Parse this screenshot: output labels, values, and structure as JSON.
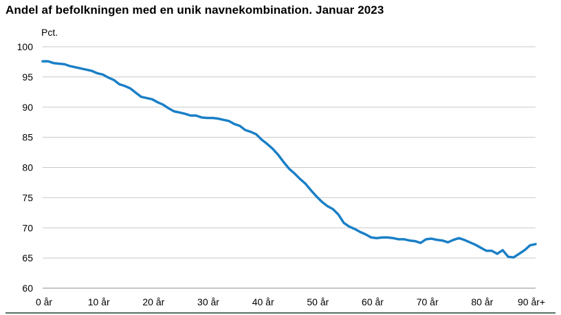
{
  "chart_data": {
    "type": "line",
    "title": "Andel af befolkningen med en unik navnekombination. Januar 2023",
    "ylabel": "Pct.",
    "xlabel": "",
    "ylim": [
      60,
      100
    ],
    "xlim": [
      0,
      90
    ],
    "y_ticks": [
      60,
      65,
      70,
      75,
      80,
      85,
      90,
      95,
      100
    ],
    "x_ticks": [
      {
        "value": 0,
        "label": "0 år"
      },
      {
        "value": 10,
        "label": "10 år"
      },
      {
        "value": 20,
        "label": "20 år"
      },
      {
        "value": 30,
        "label": "30 år"
      },
      {
        "value": 40,
        "label": "40 år"
      },
      {
        "value": 50,
        "label": "50 år"
      },
      {
        "value": 60,
        "label": "60 år"
      },
      {
        "value": 70,
        "label": "70 år"
      },
      {
        "value": 80,
        "label": "80 år"
      },
      {
        "value": 90,
        "label": "90 år+"
      }
    ],
    "grid": true,
    "line_color": "#1a7fc6",
    "series": [
      {
        "x": [
          0,
          1,
          2,
          3,
          4,
          5,
          6,
          7,
          8,
          9,
          10,
          11,
          12,
          13,
          14,
          15,
          16,
          17,
          18,
          19,
          20,
          21,
          22,
          23,
          24,
          25,
          26,
          27,
          28,
          29,
          30,
          31,
          32,
          33,
          34,
          35,
          36,
          37,
          38,
          39,
          40,
          41,
          42,
          43,
          44,
          45,
          46,
          47,
          48,
          49,
          50,
          51,
          52,
          53,
          54,
          55,
          56,
          57,
          58,
          59,
          60,
          61,
          62,
          63,
          64,
          65,
          66,
          67,
          68,
          69,
          70,
          71,
          72,
          73,
          74,
          75,
          76,
          77,
          78,
          79,
          80,
          81,
          82,
          83,
          84,
          85,
          86,
          87,
          88,
          89,
          90
        ],
        "values": [
          97.6,
          97.6,
          97.3,
          97.2,
          97.1,
          96.8,
          96.6,
          96.4,
          96.2,
          96.0,
          95.6,
          95.4,
          94.9,
          94.5,
          93.8,
          93.5,
          93.1,
          92.4,
          91.7,
          91.5,
          91.3,
          90.8,
          90.4,
          89.8,
          89.3,
          89.1,
          88.9,
          88.6,
          88.6,
          88.3,
          88.2,
          88.2,
          88.1,
          87.9,
          87.7,
          87.2,
          86.9,
          86.2,
          85.9,
          85.5,
          84.6,
          83.9,
          83.1,
          82.1,
          80.9,
          79.8,
          79.0,
          78.1,
          77.3,
          76.2,
          75.2,
          74.3,
          73.6,
          73.1,
          72.2,
          70.8,
          70.2,
          69.8,
          69.3,
          68.9,
          68.4,
          68.3,
          68.4,
          68.4,
          68.3,
          68.1,
          68.1,
          67.9,
          67.8,
          67.5,
          68.1,
          68.2,
          68.0,
          67.9,
          67.6,
          68.0,
          68.3,
          68.0,
          67.6,
          67.2,
          66.7,
          66.2,
          66.2,
          65.7,
          66.3,
          65.2,
          65.1,
          65.7,
          66.3,
          67.1,
          67.3
        ]
      }
    ]
  }
}
